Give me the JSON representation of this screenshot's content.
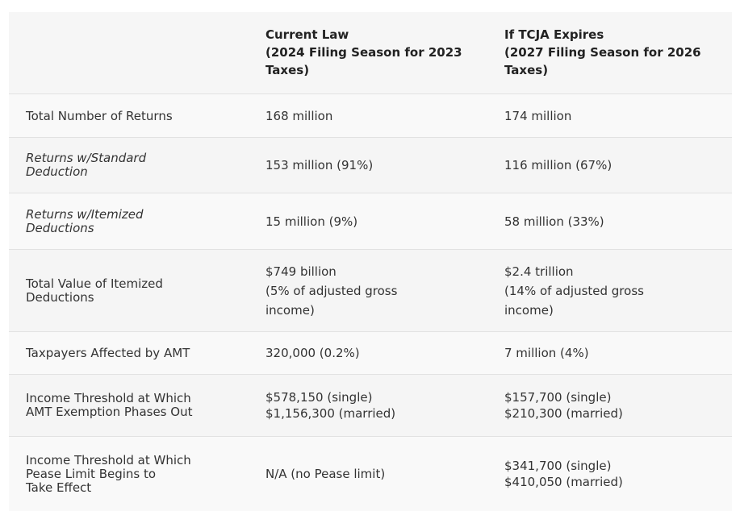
{
  "header": {
    "col1": "",
    "col2_lines": [
      "Current Law",
      "(2024 Filing Season for 2023",
      "Taxes)"
    ],
    "col3_lines": [
      "If TCJA Expires",
      "(2027 Filing Season for 2026",
      "Taxes)"
    ]
  },
  "rows": [
    {
      "label_lines": [
        "Total Number of Returns"
      ],
      "current_lines": [
        "168 million"
      ],
      "expires_lines": [
        "174 million"
      ]
    },
    {
      "label_lines": [
        "Returns w/Standard",
        "Deduction"
      ],
      "current_lines": [
        "153 million (91%)"
      ],
      "expires_lines": [
        "116 million (67%)"
      ]
    },
    {
      "label_lines": [
        "Returns w/Itemized",
        "Deductions"
      ],
      "current_lines": [
        "15 million (9%)"
      ],
      "expires_lines": [
        "58 million (33%)"
      ]
    },
    {
      "label_lines": [
        "Total Value of Itemized",
        "Deductions"
      ],
      "current_lines": [
        "$749 billion",
        "(5% of adjusted gross",
        "income)"
      ],
      "expires_lines": [
        "$2.4 trillion",
        "(14% of adjusted gross",
        "income)"
      ]
    },
    {
      "label_lines": [
        "Taxpayers Affected by AMT"
      ],
      "current_lines": [
        "320,000 (0.2%)"
      ],
      "expires_lines": [
        "7 million (4%)"
      ]
    },
    {
      "label_lines": [
        "Income Threshold at Which",
        "AMT Exemption Phases Out"
      ],
      "current_lines": [
        "$578,150 (single)",
        "$1,156,300 (married)"
      ],
      "expires_lines": [
        "$157,700 (single)",
        "$210,300 (married)"
      ]
    },
    {
      "label_lines": [
        "Income Threshold at Which",
        "Pease Limit Begins to",
        "Take Effect"
      ],
      "current_lines": [
        "N/A (no Pease limit)"
      ],
      "expires_lines": [
        "$341,700 (single)",
        "$410,050 (married)"
      ]
    }
  ]
}
